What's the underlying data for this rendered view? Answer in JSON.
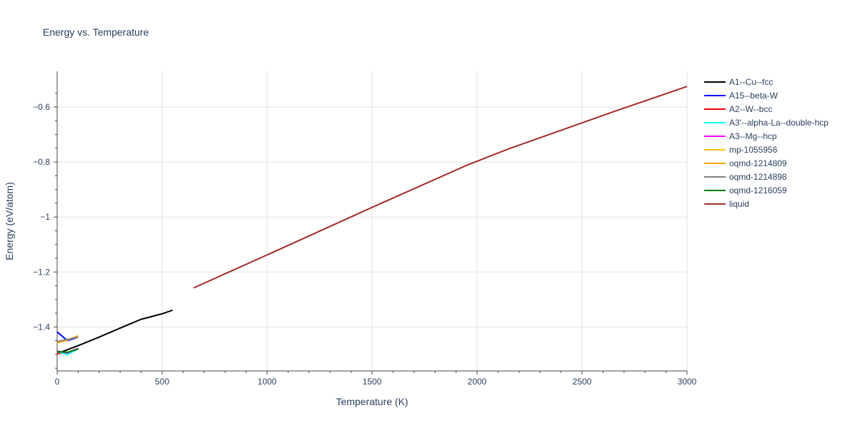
{
  "chart_data": {
    "type": "line",
    "title": "Energy vs. Temperature",
    "xlabel": "Temperature (K)",
    "ylabel": "Energy (eV/atom)",
    "xlim": [
      0,
      3000
    ],
    "ylim": [
      -1.56,
      -0.47
    ],
    "x_ticks": [
      0,
      500,
      1000,
      1500,
      2000,
      2500,
      3000
    ],
    "x_tick_labels": [
      "0",
      "500",
      "1000",
      "1500",
      "2000",
      "2500",
      "3000"
    ],
    "y_ticks": [
      -0.6,
      -0.8,
      -1.0,
      -1.2,
      -1.4
    ],
    "y_tick_labels": [
      "−0.6",
      "−0.8",
      "−1",
      "−1.2",
      "−1.4"
    ],
    "grid": true,
    "legend_position": "right",
    "series": [
      {
        "name": "A1--Cu--fcc",
        "color": "#000000",
        "x": [
          0,
          100,
          200,
          300,
          400,
          500,
          550
        ],
        "y": [
          -1.497,
          -1.468,
          -1.437,
          -1.404,
          -1.372,
          -1.352,
          -1.339
        ]
      },
      {
        "name": "A15--beta-W",
        "color": "#0000ff",
        "x": [
          0,
          50,
          100
        ],
        "y": [
          -1.418,
          -1.45,
          -1.437
        ]
      },
      {
        "name": "A2--W--bcc",
        "color": "#ff0000",
        "x": [
          0,
          50,
          100
        ],
        "y": [
          -1.497,
          -1.493,
          -1.478
        ]
      },
      {
        "name": "A3'--alpha-La--double-hcp",
        "color": "#00ffff",
        "x": [
          0,
          50,
          100
        ],
        "y": [
          -1.49,
          -1.5,
          -1.48
        ]
      },
      {
        "name": "A3--Mg--hcp",
        "color": "#ff00ff",
        "x": [
          0,
          50,
          100
        ],
        "y": [
          -1.488,
          -1.494,
          -1.478
        ]
      },
      {
        "name": "mp-1055956",
        "color": "#ffc107",
        "x": [
          0,
          50,
          100
        ],
        "y": [
          -1.458,
          -1.448,
          -1.432
        ]
      },
      {
        "name": "oqmd-1214809",
        "color": "#ffa500",
        "x": [
          0,
          50,
          100
        ],
        "y": [
          -1.457,
          -1.447,
          -1.433
        ]
      },
      {
        "name": "oqmd-1214898",
        "color": "#808080",
        "x": [
          0,
          50,
          100
        ],
        "y": [
          -1.453,
          -1.445,
          -1.437
        ]
      },
      {
        "name": "oqmd-1216059",
        "color": "#008000",
        "x": [
          0,
          50,
          100
        ],
        "y": [
          -1.49,
          -1.492,
          -1.48
        ]
      },
      {
        "name": "liquid",
        "color": "#a52a2a",
        "x": [
          650,
          1000,
          1500,
          1950,
          2150,
          2650,
          3000
        ],
        "y": [
          -1.258,
          -1.138,
          -0.965,
          -0.812,
          -0.752,
          -0.617,
          -0.525
        ]
      }
    ]
  }
}
